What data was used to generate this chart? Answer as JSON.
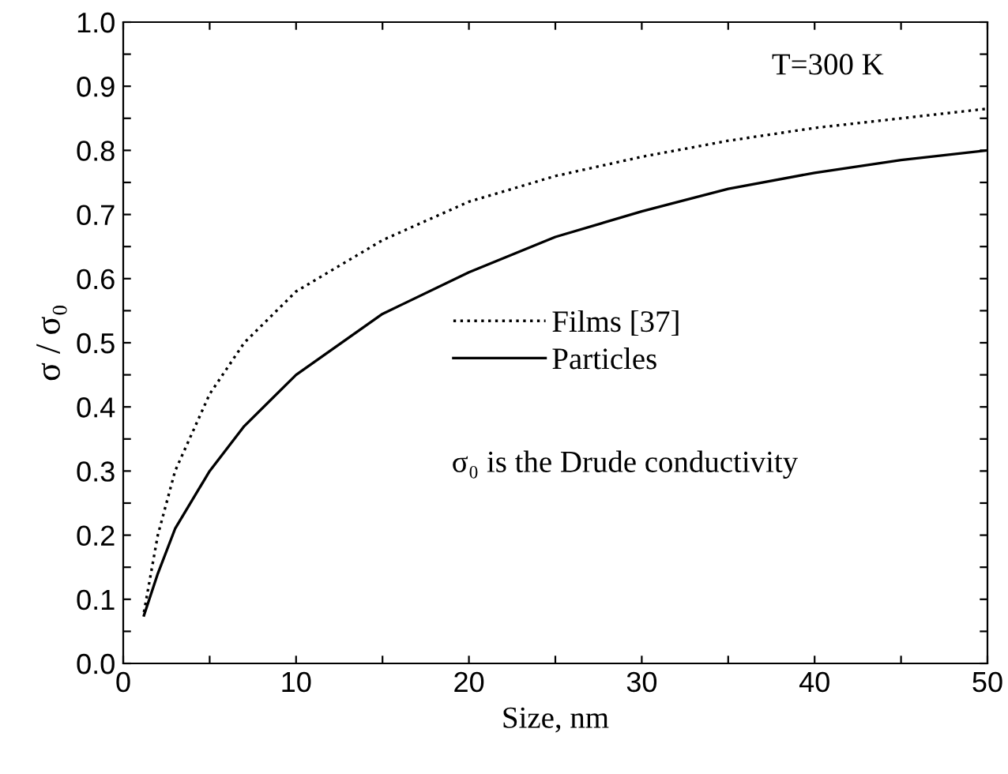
{
  "chart_data": {
    "type": "line",
    "xlabel": "Size, nm",
    "ylabel": "σ / σ₀",
    "x": [
      1.2,
      2,
      3,
      5,
      7,
      10,
      15,
      20,
      25,
      30,
      35,
      40,
      45,
      50
    ],
    "series": [
      {
        "name": "Films [37]",
        "color": "#000000",
        "line_style": "dotted",
        "values": [
          0.08,
          0.2,
          0.3,
          0.42,
          0.5,
          0.58,
          0.66,
          0.72,
          0.76,
          0.79,
          0.815,
          0.835,
          0.85,
          0.865
        ]
      },
      {
        "name": "Particles",
        "color": "#000000",
        "line_style": "solid",
        "values": [
          0.075,
          0.14,
          0.21,
          0.3,
          0.37,
          0.45,
          0.545,
          0.61,
          0.665,
          0.705,
          0.74,
          0.765,
          0.785,
          0.8
        ]
      }
    ],
    "xlim": [
      0,
      50
    ],
    "ylim": [
      0,
      1.0
    ],
    "xticks": [
      0,
      {
        "value": 5,
        "label": null
      },
      10,
      {
        "value": 15,
        "label": null
      },
      20,
      {
        "value": 25,
        "label": null
      },
      30,
      {
        "value": 35,
        "label": null
      },
      40,
      {
        "value": 45,
        "label": null
      },
      50
    ],
    "yticks": [
      {
        "value": 0,
        "label": "0.0"
      },
      {
        "value": 0.05,
        "label": null
      },
      0.1,
      {
        "value": 0.15,
        "label": null
      },
      0.2,
      {
        "value": 0.25,
        "label": null
      },
      0.3,
      {
        "value": 0.35,
        "label": null
      },
      0.4,
      {
        "value": 0.45,
        "label": null
      },
      0.5,
      {
        "value": 0.55,
        "label": null
      },
      0.6,
      {
        "value": 0.65,
        "label": null
      },
      0.7,
      {
        "value": 0.75,
        "label": null
      },
      0.8,
      {
        "value": 0.85,
        "label": null
      },
      0.9,
      {
        "value": 0.95,
        "label": null
      },
      {
        "value": 1.0,
        "label": "1.0"
      }
    ],
    "annotations": [
      "T=300 K",
      "σ₀ is the Drude conductivity"
    ],
    "legend": "right",
    "grid": false,
    "marker": "none"
  }
}
